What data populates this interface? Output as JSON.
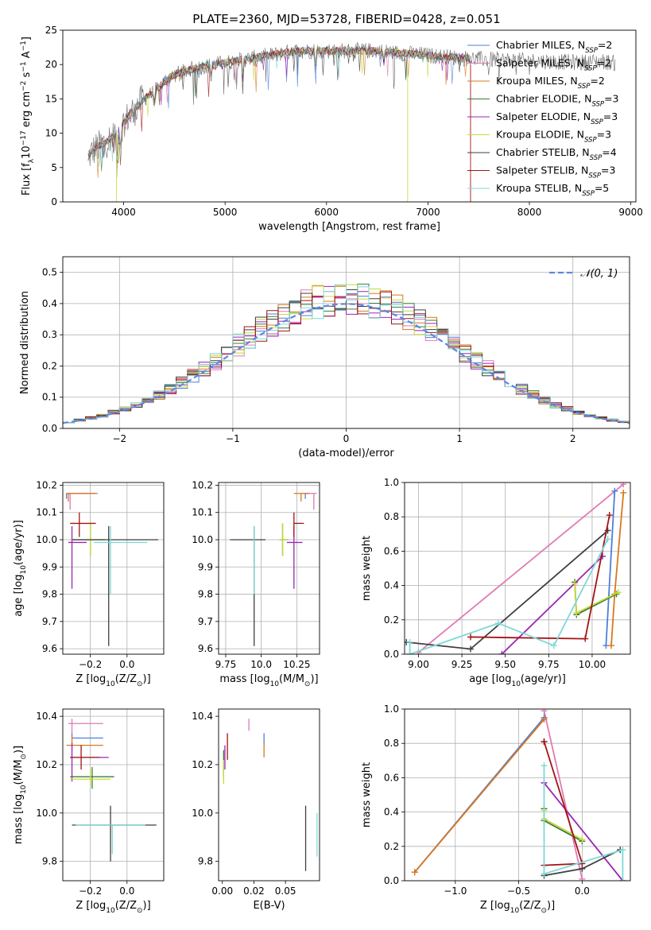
{
  "figure": {
    "title": "PLATE=2360, MJD=53728, FIBERID=0428, z=0.051"
  },
  "colors": {
    "Chabrier MILES": "#4e7fd9",
    "Salpeter MILES": "#e17ab4",
    "Kroupa MILES": "#d9781f",
    "Chabrier ELODIE": "#3a7d3a",
    "Salpeter ELODIE": "#9a26b3",
    "Kroupa ELODIE": "#c9d83a",
    "Chabrier STELIB": "#3f3f3f",
    "Salpeter STELIB": "#a21414",
    "Kroupa STELIB": "#7fd8d8"
  },
  "chart_data": [
    {
      "id": "spectrum",
      "type": "line",
      "title": "PLATE=2360, MJD=53728, FIBERID=0428, z=0.051",
      "xlabel": "wavelength [Angstrom, rest frame]",
      "ylabel": "Flux [f_λ10^-17 erg cm^-2 s^-1 A^-1]",
      "xlim": [
        3400,
        9050
      ],
      "ylim": [
        0,
        25
      ],
      "xticks": [
        4000,
        5000,
        6000,
        7000,
        8000,
        9000
      ],
      "yticks": [
        0,
        5,
        10,
        15,
        20,
        25
      ],
      "legend_position": "top-right",
      "legend": [
        {
          "base": "Chabrier MILES, N",
          "sub": "SSP",
          "tail": "=2"
        },
        {
          "base": "Salpeter MILES, N",
          "sub": "SSP",
          "tail": "=2"
        },
        {
          "base": "Kroupa MILES, N",
          "sub": "SSP",
          "tail": "=2"
        },
        {
          "base": "Chabrier ELODIE, N",
          "sub": "SSP",
          "tail": "=3"
        },
        {
          "base": "Salpeter ELODIE, N",
          "sub": "SSP",
          "tail": "=3"
        },
        {
          "base": "Kroupa ELODIE, N",
          "sub": "SSP",
          "tail": "=3"
        },
        {
          "base": "Chabrier STELIB, N",
          "sub": "SSP",
          "tail": "=4"
        },
        {
          "base": "Salpeter STELIB, N",
          "sub": "SSP",
          "tail": "=3"
        },
        {
          "base": "Kroupa STELIB, N",
          "sub": "SSP",
          "tail": "=5"
        }
      ],
      "continuum": {
        "x": [
          3650,
          3700,
          3800,
          3900,
          4000,
          4100,
          4200,
          4300,
          4400,
          4500,
          4700,
          4900,
          5100,
          5300,
          5500,
          5700,
          5900,
          6100,
          6300,
          6500,
          6700,
          6900,
          7100,
          7300,
          7500,
          7700,
          7900,
          8100,
          8300,
          8500,
          8700,
          8850
        ],
        "y": [
          6.5,
          7.5,
          8.5,
          9.5,
          11.5,
          13.5,
          15.0,
          16.0,
          17.5,
          18.5,
          19.5,
          20.0,
          20.5,
          21.0,
          21.5,
          22.0,
          22.0,
          22.0,
          22.0,
          22.0,
          21.7,
          21.5,
          21.2,
          21.0,
          20.8,
          20.7,
          20.6,
          20.5,
          20.4,
          20.3,
          20.5,
          20.2
        ]
      },
      "model_x_range": [
        3650,
        7420
      ]
    },
    {
      "id": "residuals",
      "type": "step",
      "xlabel": "(data-model)/error",
      "ylabel": "Normed distribution",
      "xlim": [
        -2.5,
        2.5
      ],
      "ylim": [
        0,
        0.55
      ],
      "xticks": [
        -2,
        -1,
        0,
        1,
        2
      ],
      "yticks": [
        0.0,
        0.1,
        0.2,
        0.3,
        0.4,
        0.5
      ],
      "grid": true,
      "legend_position": "top-right",
      "gaussian_label": "𝒩(0, 1)",
      "bin_width": 0.1
    },
    {
      "id": "age-vs-Z",
      "type": "errorbar",
      "xlabel": "Z [log10(Z/Z⊙)]",
      "ylabel": "age [log10(age/yr)]",
      "xlim": [
        -0.35,
        0.2
      ],
      "ylim": [
        9.58,
        10.21
      ],
      "xticks": [
        -0.2,
        0.0
      ],
      "yticks": [
        9.6,
        9.7,
        9.8,
        9.9,
        10.0,
        10.1,
        10.2
      ],
      "grid": true,
      "points": [
        {
          "model": "Chabrier MILES",
          "x": -0.33,
          "y": 10.17,
          "xerr": [
            0.0,
            0.17
          ],
          "yerr": [
            0.02,
            0.0
          ]
        },
        {
          "model": "Salpeter MILES",
          "x": -0.31,
          "y": 10.17,
          "xerr": [
            0.02,
            0.15
          ],
          "yerr": [
            0.06,
            0.0
          ]
        },
        {
          "model": "Kroupa MILES",
          "x": -0.32,
          "y": 10.17,
          "xerr": [
            0.01,
            0.15
          ],
          "yerr": [
            0.03,
            0.0
          ]
        },
        {
          "model": "Chabrier ELODIE",
          "x": -0.2,
          "y": 10.0,
          "xerr": [
            0.11,
            0.08
          ],
          "yerr": [
            0.06,
            0.06
          ]
        },
        {
          "model": "Salpeter ELODIE",
          "x": -0.3,
          "y": 9.99,
          "xerr": [
            0.02,
            0.08
          ],
          "yerr": [
            0.17,
            0.06
          ]
        },
        {
          "model": "Kroupa ELODIE",
          "x": -0.2,
          "y": 10.0,
          "xerr": [
            0.11,
            0.08
          ],
          "yerr": [
            0.06,
            0.06
          ]
        },
        {
          "model": "Chabrier STELIB",
          "x": -0.1,
          "y": 10.0,
          "xerr": [
            0.2,
            0.27
          ],
          "yerr": [
            0.39,
            0.05
          ]
        },
        {
          "model": "Salpeter STELIB",
          "x": -0.26,
          "y": 10.06,
          "xerr": [
            0.05,
            0.09
          ],
          "yerr": [
            0.05,
            0.04
          ]
        },
        {
          "model": "Kroupa STELIB",
          "x": -0.09,
          "y": 9.99,
          "xerr": [
            0.09,
            0.2
          ],
          "yerr": [
            0.19,
            0.06
          ]
        }
      ]
    },
    {
      "id": "age-vs-mass",
      "type": "errorbar",
      "xlabel": "mass [log10(M/M⊙)]",
      "ylabel": "",
      "xlim": [
        9.7,
        10.41
      ],
      "ylim": [
        9.58,
        10.21
      ],
      "xticks": [
        9.75,
        10.0,
        10.25
      ],
      "yticks": [
        9.6,
        9.7,
        9.8,
        9.9,
        10.0,
        10.1,
        10.2
      ],
      "grid": true,
      "points": [
        {
          "model": "Chabrier MILES",
          "x": 10.31,
          "y": 10.17,
          "xerr": [
            0.0,
            0.02
          ],
          "yerr": [
            0.02,
            0.0
          ]
        },
        {
          "model": "Salpeter MILES",
          "x": 10.37,
          "y": 10.17,
          "xerr": [
            0.08,
            0.02
          ],
          "yerr": [
            0.06,
            0.0
          ]
        },
        {
          "model": "Kroupa MILES",
          "x": 10.28,
          "y": 10.17,
          "xerr": [
            0.05,
            0.06
          ],
          "yerr": [
            0.03,
            0.0
          ]
        },
        {
          "model": "Chabrier ELODIE",
          "x": 10.15,
          "y": 10.0,
          "xerr": [
            0.02,
            0.04
          ],
          "yerr": [
            0.06,
            0.06
          ]
        },
        {
          "model": "Salpeter ELODIE",
          "x": 10.23,
          "y": 9.99,
          "xerr": [
            0.05,
            0.06
          ],
          "yerr": [
            0.17,
            0.06
          ]
        },
        {
          "model": "Kroupa ELODIE",
          "x": 10.15,
          "y": 10.0,
          "xerr": [
            0.02,
            0.04
          ],
          "yerr": [
            0.06,
            0.06
          ]
        },
        {
          "model": "Chabrier STELIB",
          "x": 9.95,
          "y": 10.0,
          "xerr": [
            0.17,
            0.08
          ],
          "yerr": [
            0.39,
            0.05
          ]
        },
        {
          "model": "Salpeter STELIB",
          "x": 10.23,
          "y": 10.06,
          "xerr": [
            0.0,
            0.07
          ],
          "yerr": [
            0.05,
            0.04
          ]
        },
        {
          "model": "Kroupa STELIB",
          "x": 9.95,
          "y": 9.99,
          "xerr": [
            0.0,
            0.0
          ],
          "yerr": [
            0.19,
            0.06
          ]
        }
      ]
    },
    {
      "id": "mass-vs-Z",
      "type": "errorbar",
      "xlabel": "Z [log10(Z/Z⊙)]",
      "ylabel": "mass [log10(M/M⊙)]",
      "xlim": [
        -0.35,
        0.2
      ],
      "ylim": [
        9.72,
        10.43
      ],
      "xticks": [
        -0.2,
        0.0
      ],
      "yticks": [
        9.8,
        10.0,
        10.2,
        10.4
      ],
      "grid": true,
      "points": [
        {
          "model": "Chabrier MILES",
          "x": -0.3,
          "y": 10.31,
          "xerr": [
            0.0,
            0.17
          ],
          "yerr": [
            0.0,
            0.02
          ]
        },
        {
          "model": "Salpeter MILES",
          "x": -0.3,
          "y": 10.37,
          "xerr": [
            0.02,
            0.17
          ],
          "yerr": [
            0.04,
            0.02
          ]
        },
        {
          "model": "Kroupa MILES",
          "x": -0.3,
          "y": 10.28,
          "xerr": [
            0.03,
            0.17
          ],
          "yerr": [
            0.02,
            0.04
          ]
        },
        {
          "model": "Chabrier ELODIE",
          "x": -0.19,
          "y": 10.15,
          "xerr": [
            0.12,
            0.12
          ],
          "yerr": [
            0.05,
            0.04
          ]
        },
        {
          "model": "Salpeter ELODIE",
          "x": -0.3,
          "y": 10.23,
          "xerr": [
            0.01,
            0.2
          ],
          "yerr": [
            0.1,
            0.06
          ]
        },
        {
          "model": "Kroupa ELODIE",
          "x": -0.2,
          "y": 10.14,
          "xerr": [
            0.11,
            0.11
          ],
          "yerr": [
            0.03,
            0.04
          ]
        },
        {
          "model": "Chabrier STELIB",
          "x": -0.09,
          "y": 9.95,
          "xerr": [
            0.21,
            0.25
          ],
          "yerr": [
            0.15,
            0.08
          ]
        },
        {
          "model": "Salpeter STELIB",
          "x": -0.25,
          "y": 10.23,
          "xerr": [
            0.06,
            0.1
          ],
          "yerr": [
            0.05,
            0.05
          ]
        },
        {
          "model": "Kroupa STELIB",
          "x": -0.08,
          "y": 9.95,
          "xerr": [
            0.2,
            0.18
          ],
          "yerr": [
            0.12,
            0.0
          ]
        }
      ]
    },
    {
      "id": "mass-vs-EBV",
      "type": "errorbar",
      "xlabel": "E(B-V)",
      "ylabel": "",
      "xlim": [
        -0.003,
        0.077
      ],
      "ylim": [
        9.72,
        10.43
      ],
      "xticks": [
        0.0,
        0.025,
        0.05
      ],
      "xticklabels": [
        "0.00",
        "0.02",
        "0.05"
      ],
      "yticks": [
        9.8,
        10.0,
        10.2,
        10.4
      ],
      "grid": false,
      "points": [
        {
          "model": "Chabrier MILES",
          "x": 0.033,
          "y": 10.3,
          "xerr": [
            0.0,
            0.0
          ],
          "yerr": [
            0.02,
            0.03
          ]
        },
        {
          "model": "Salpeter MILES",
          "x": 0.021,
          "y": 10.37,
          "xerr": [
            0.0,
            0.0
          ],
          "yerr": [
            0.03,
            0.02
          ]
        },
        {
          "model": "Kroupa MILES",
          "x": 0.033,
          "y": 10.27,
          "xerr": [
            0.0,
            0.0
          ],
          "yerr": [
            0.04,
            0.02
          ]
        },
        {
          "model": "Chabrier ELODIE",
          "x": 0.001,
          "y": 10.2,
          "xerr": [
            0.0,
            0.0
          ],
          "yerr": [
            0.05,
            0.06
          ]
        },
        {
          "model": "Salpeter ELODIE",
          "x": 0.002,
          "y": 10.22,
          "xerr": [
            0.0,
            0.0
          ],
          "yerr": [
            0.04,
            0.06
          ]
        },
        {
          "model": "Kroupa ELODIE",
          "x": 0.001,
          "y": 10.17,
          "xerr": [
            0.0,
            0.0
          ],
          "yerr": [
            0.05,
            0.05
          ]
        },
        {
          "model": "Chabrier STELIB",
          "x": 0.066,
          "y": 9.83,
          "xerr": [
            0.0,
            0.0
          ],
          "yerr": [
            0.07,
            0.2
          ]
        },
        {
          "model": "Salpeter STELIB",
          "x": 0.004,
          "y": 10.26,
          "xerr": [
            0.0,
            0.0
          ],
          "yerr": [
            0.04,
            0.07
          ]
        },
        {
          "model": "Kroupa STELIB",
          "x": 0.075,
          "y": 9.91,
          "xerr": [
            0.0,
            0.0
          ],
          "yerr": [
            0.09,
            0.09
          ]
        }
      ]
    },
    {
      "id": "weight-vs-age",
      "type": "line",
      "xlabel": "age [log10(age/yr)]",
      "ylabel": "mass weight",
      "xlim": [
        8.92,
        10.22
      ],
      "ylim": [
        0.0,
        1.0
      ],
      "xticks": [
        9.0,
        9.25,
        9.5,
        9.75,
        10.0
      ],
      "xticklabels": [
        "9.00",
        "9.25",
        "9.50",
        "9.75",
        "10.00"
      ],
      "yticks": [
        0.0,
        0.2,
        0.4,
        0.6,
        0.8,
        1.0
      ],
      "grid": true,
      "series": [
        {
          "model": "Salpeter MILES",
          "x": [
            9.0,
            10.18
          ],
          "y": [
            0.01,
            0.99
          ]
        },
        {
          "model": "Chabrier MILES",
          "x": [
            10.08,
            10.13
          ],
          "y": [
            0.05,
            0.95
          ]
        },
        {
          "model": "Kroupa MILES",
          "x": [
            10.11,
            10.13,
            10.18
          ],
          "y": [
            0.05,
            0.35,
            0.94
          ]
        },
        {
          "model": "Chabrier ELODIE",
          "x": [
            9.9,
            9.91,
            10.14
          ],
          "y": [
            0.42,
            0.23,
            0.35
          ]
        },
        {
          "model": "Salpeter ELODIE",
          "x": [
            9.48,
            10.06
          ],
          "y": [
            0.0,
            0.57
          ]
        },
        {
          "model": "Kroupa ELODIE",
          "x": [
            9.9,
            9.91,
            10.15
          ],
          "y": [
            0.41,
            0.24,
            0.36
          ]
        },
        {
          "model": "Chabrier STELIB",
          "x": [
            8.93,
            9.3,
            10.09
          ],
          "y": [
            0.07,
            0.03,
            0.72
          ]
        },
        {
          "model": "Salpeter STELIB",
          "x": [
            9.3,
            9.96,
            10.1
          ],
          "y": [
            0.1,
            0.09,
            0.81
          ]
        },
        {
          "model": "Kroupa STELIB",
          "x": [
            8.95,
            8.95,
            9.46,
            9.78,
            10.09
          ],
          "y": [
            0.07,
            0.0,
            0.18,
            0.05,
            0.67
          ]
        }
      ]
    },
    {
      "id": "weight-vs-Z",
      "type": "line",
      "xlabel": "Z [log10(Z/Z⊙)]",
      "ylabel": "mass weight",
      "xlim": [
        -1.4,
        0.38
      ],
      "ylim": [
        0.0,
        1.0
      ],
      "xticks": [
        -1.0,
        -0.5,
        0.0
      ],
      "yticks": [
        0.0,
        0.2,
        0.4,
        0.6,
        0.8,
        1.0
      ],
      "grid": true,
      "series": [
        {
          "model": "Salpeter MILES",
          "x": [
            -0.3,
            0.0
          ],
          "y": [
            0.99,
            0.01
          ]
        },
        {
          "model": "Chabrier MILES",
          "x": [
            -1.32,
            -0.3
          ],
          "y": [
            0.05,
            0.95
          ]
        },
        {
          "model": "Kroupa MILES",
          "x": [
            -1.32,
            -0.3
          ],
          "y": [
            0.05,
            0.94
          ]
        },
        {
          "model": "Chabrier ELODIE",
          "x": [
            -0.3,
            -0.3,
            0.0
          ],
          "y": [
            0.42,
            0.35,
            0.23
          ]
        },
        {
          "model": "Salpeter ELODIE",
          "x": [
            -0.3,
            0.32
          ],
          "y": [
            0.57,
            0.0
          ]
        },
        {
          "model": "Kroupa ELODIE",
          "x": [
            -0.3,
            -0.3,
            0.0
          ],
          "y": [
            0.41,
            0.36,
            0.24
          ]
        },
        {
          "model": "Chabrier STELIB",
          "x": [
            -0.3,
            0.0,
            0.3
          ],
          "y": [
            0.03,
            0.07,
            0.18
          ]
        },
        {
          "model": "Salpeter STELIB",
          "x": [
            -0.3,
            0.0,
            -0.3,
            -0.3
          ],
          "y": [
            0.09,
            0.1,
            0.81,
            0.81
          ]
        },
        {
          "model": "Kroupa STELIB",
          "x": [
            -0.3,
            -0.3,
            0.32,
            0.32
          ],
          "y": [
            0.67,
            0.04,
            0.18,
            0.0
          ]
        }
      ]
    }
  ]
}
